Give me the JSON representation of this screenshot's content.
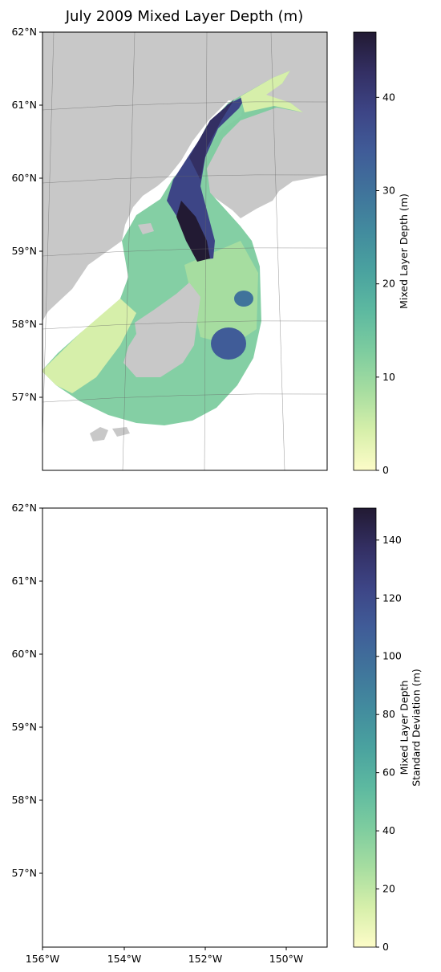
{
  "title": "July 2009 Mixed Layer Depth (m)",
  "colors": {
    "land": "#c8c8c8",
    "frame": "#000000",
    "gridline": "#666666",
    "cmap": [
      "#fdfcc8",
      "#d6efaa",
      "#a6dda0",
      "#7dcc9f",
      "#5db9a0",
      "#4aa29f",
      "#428b9e",
      "#40739b",
      "#405c98",
      "#3d4586",
      "#332f63",
      "#221a33"
    ]
  },
  "chart_data": [
    {
      "type": "heatmap",
      "projection": "map",
      "region": "Cook Inlet / Shelikof Strait, Gulf of Alaska",
      "lat_ticks": [
        "62°N",
        "61°N",
        "60°N",
        "59°N",
        "58°N",
        "57°N"
      ],
      "lon_ticks": [],
      "lon_range": [
        -156,
        -149
      ],
      "lat_range": [
        56,
        62
      ],
      "colorbar": {
        "label": "Mixed Layer Depth (m)",
        "label_lines": [
          "Mixed Layer Depth (m)"
        ],
        "range": [
          0,
          47
        ],
        "ticks": [
          0,
          10,
          20,
          30,
          40
        ],
        "colormap": "deep"
      }
    },
    {
      "type": "heatmap",
      "projection": "map",
      "region": "Cook Inlet / Shelikof Strait, Gulf of Alaska",
      "lat_ticks": [
        "62°N",
        "61°N",
        "60°N",
        "59°N",
        "58°N",
        "57°N"
      ],
      "lon_ticks": [
        "156°W",
        "154°W",
        "152°W",
        "150°W"
      ],
      "lon_range": [
        -156,
        -149
      ],
      "lat_range": [
        56,
        62
      ],
      "colorbar": {
        "label": "Mixed Layer Depth Standard Deviation (m)",
        "label_lines": [
          "Mixed Layer Depth",
          "Standard Deviation (m)"
        ],
        "range": [
          0,
          151
        ],
        "ticks": [
          0,
          20,
          40,
          60,
          80,
          100,
          120,
          140
        ],
        "colormap": "deep"
      }
    }
  ]
}
